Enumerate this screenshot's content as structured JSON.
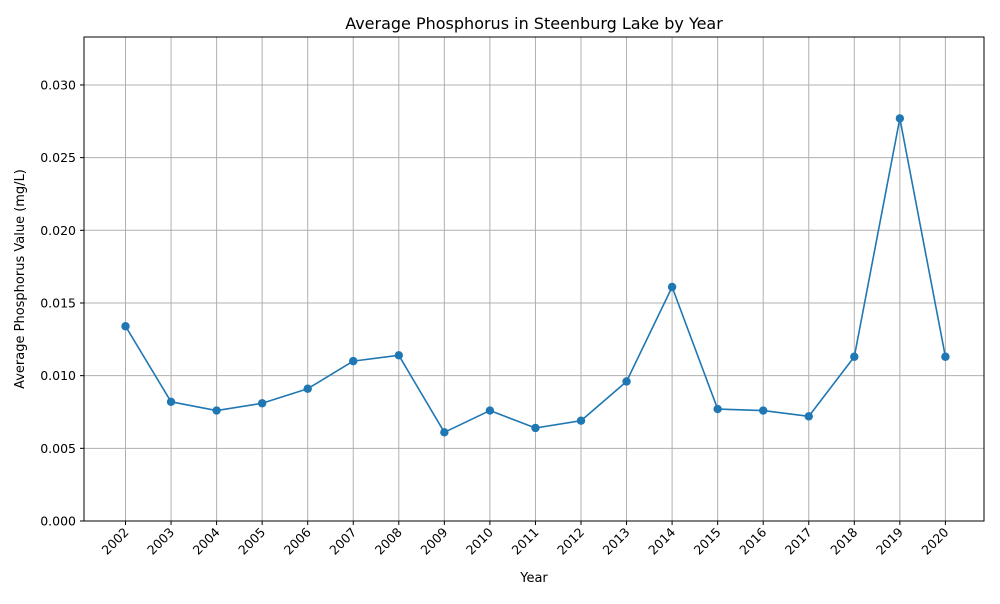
{
  "chart_data": {
    "type": "line",
    "title": "Average Phosphorus in Steenburg Lake by Year",
    "xlabel": "Year",
    "ylabel": "Average Phosphorus Value (mg/L)",
    "categories": [
      "2002",
      "2003",
      "2004",
      "2005",
      "2006",
      "2007",
      "2008",
      "2009",
      "2010",
      "2011",
      "2012",
      "2013",
      "2014",
      "2015",
      "2016",
      "2017",
      "2018",
      "2019",
      "2020"
    ],
    "series": [
      {
        "values": [
          0.0134,
          0.0082,
          0.0076,
          0.0081,
          0.0091,
          0.011,
          0.0114,
          0.0061,
          0.0076,
          0.0064,
          0.0069,
          0.0096,
          0.0161,
          0.0077,
          0.0076,
          0.0072,
          0.0113,
          0.0277,
          0.0113
        ],
        "color": "#1f77b4",
        "marker": "circle"
      }
    ],
    "ylim": [
      0,
      0.0333
    ],
    "yticks": [
      "0.000",
      "0.005",
      "0.010",
      "0.015",
      "0.020",
      "0.025",
      "0.030"
    ],
    "grid": true,
    "legend": "none"
  }
}
